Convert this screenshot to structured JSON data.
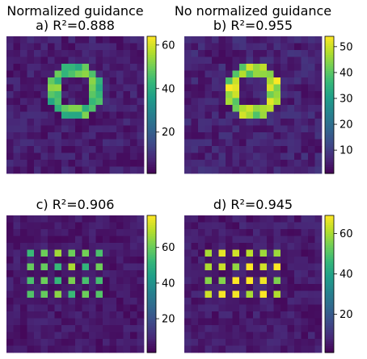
{
  "chart_data": [
    {
      "type": "heatmap",
      "column_title": "Normalized guidance",
      "title": "a) R²=0.888",
      "pattern": "ring",
      "clim": [
        1,
        64
      ],
      "colorbar_ticks": [
        20,
        40,
        60
      ],
      "colormap": "viridis",
      "grid_size": 20,
      "background_level": 6,
      "ring": {
        "center": [
          10,
          8
        ],
        "inner_radius": 2.2,
        "outer_radius": 4.1,
        "level": 46
      }
    },
    {
      "type": "heatmap",
      "column_title": "No normalized guidance",
      "title": "b) R²=0.955",
      "pattern": "ring",
      "clim": [
        1,
        54
      ],
      "colorbar_ticks": [
        10,
        20,
        30,
        40,
        50
      ],
      "colormap": "viridis",
      "grid_size": 20,
      "background_level": 6,
      "ring": {
        "center": [
          10,
          8
        ],
        "inner_radius": 2.2,
        "outer_radius": 4.1,
        "level": 47
      }
    },
    {
      "type": "heatmap",
      "column_title": "",
      "title": "c) R²=0.906",
      "pattern": "dots",
      "clim": [
        1,
        78
      ],
      "colorbar_ticks": [
        20,
        40,
        60
      ],
      "colormap": "viridis",
      "grid_size": 20,
      "background_level": 6,
      "dots": {
        "cols": [
          3,
          5,
          7,
          9,
          11,
          13
        ],
        "rows": [
          5,
          7,
          9,
          11
        ],
        "level": 60
      }
    },
    {
      "type": "heatmap",
      "column_title": "",
      "title": "d) R²=0.945",
      "pattern": "dots",
      "clim": [
        1,
        69
      ],
      "colorbar_ticks": [
        20,
        40,
        60
      ],
      "colormap": "viridis",
      "grid_size": 20,
      "background_level": 6,
      "dots": {
        "cols": [
          3,
          5,
          7,
          9,
          11,
          13
        ],
        "rows": [
          5,
          7,
          9,
          11
        ],
        "level": 64
      }
    }
  ]
}
